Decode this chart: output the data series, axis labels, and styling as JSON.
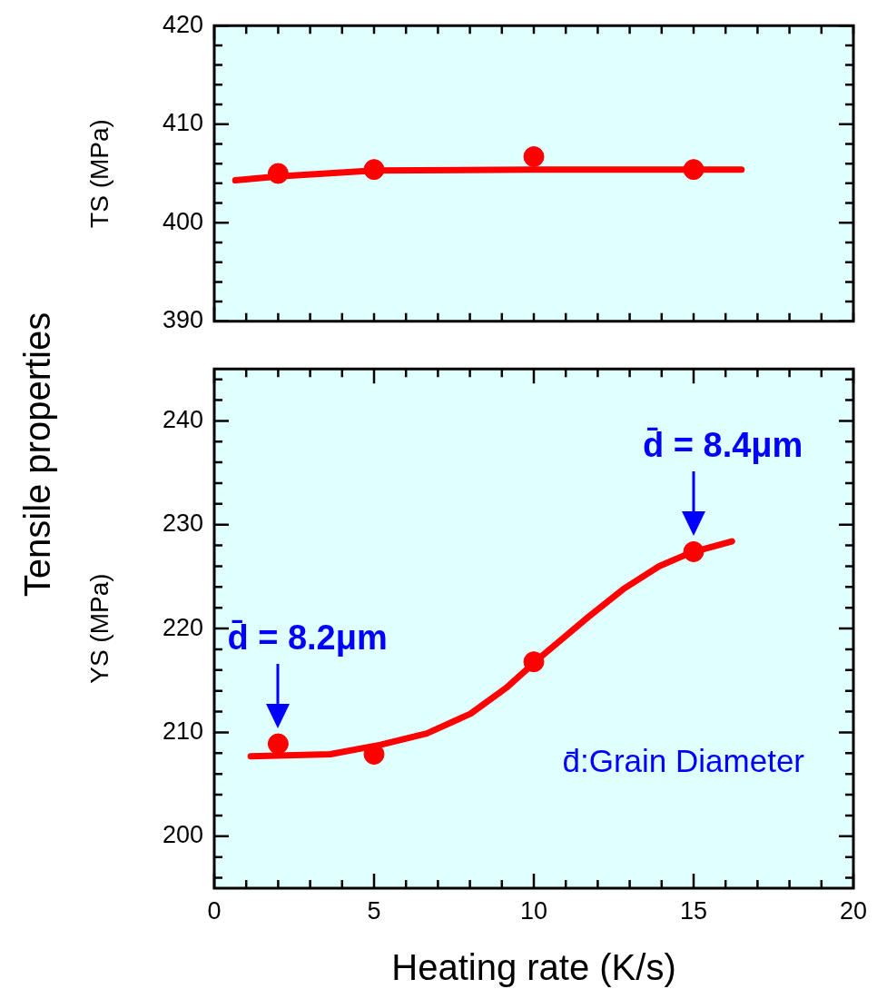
{
  "chart_data": [
    {
      "type": "scatter",
      "ylabel": "TS (MPa)",
      "annotations": [
        "Tensile properties"
      ],
      "tick_labels": "y",
      "grid": false,
      "legend": false,
      "xlim": [
        0,
        20
      ],
      "xticks": [
        0,
        {
          "value": 1,
          "label": null
        },
        {
          "value": 2,
          "label": null
        },
        {
          "value": 3,
          "label": null
        },
        {
          "value": 4,
          "label": null
        },
        {
          "value": 5,
          "label": null
        },
        {
          "value": 6,
          "label": null
        },
        {
          "value": 7,
          "label": null
        },
        {
          "value": 8,
          "label": null
        },
        {
          "value": 9,
          "label": null
        },
        {
          "value": 10,
          "label": null
        },
        {
          "value": 11,
          "label": null
        },
        {
          "value": 12,
          "label": null
        },
        {
          "value": 13,
          "label": null
        },
        {
          "value": 14,
          "label": null
        },
        {
          "value": 15,
          "label": null
        },
        {
          "value": 16,
          "label": null
        },
        {
          "value": 17,
          "label": null
        },
        {
          "value": 18,
          "label": null
        },
        {
          "value": 19,
          "label": null
        },
        {
          "value": 20,
          "label": null
        }
      ],
      "ylim": [
        390,
        420
      ],
      "yticks": [
        390,
        {
          "value": 392,
          "label": null
        },
        {
          "value": 394,
          "label": null
        },
        {
          "value": 396,
          "label": null
        },
        {
          "value": 398,
          "label": null
        },
        400,
        {
          "value": 402,
          "label": null
        },
        {
          "value": 404,
          "label": null
        },
        {
          "value": 406,
          "label": null
        },
        {
          "value": 408,
          "label": null
        },
        410,
        {
          "value": 412,
          "label": null
        },
        {
          "value": 414,
          "label": null
        },
        {
          "value": 416,
          "label": null
        },
        {
          "value": 418,
          "label": null
        },
        420
      ],
      "series": [
        {
          "type": "scatter",
          "color": "#ff0000",
          "marker": "circle",
          "x": [
            2,
            5,
            10,
            15
          ],
          "values": [
            405.0,
            405.4,
            406.7,
            405.4
          ]
        },
        {
          "type": "line",
          "color": "#ff0000",
          "marker": "none",
          "line_style": "solid",
          "x": [
            0.66,
            2,
            5,
            10,
            16.5
          ],
          "values": [
            404.3,
            404.7,
            405.3,
            405.4,
            405.4
          ]
        }
      ]
    },
    {
      "type": "scatter",
      "ylabel": "YS (MPa)",
      "xlabel": "Heating rate (K/s)",
      "grid": false,
      "legend": false,
      "annotations": [
        {
          "text": "d̄ = 8.2μm",
          "x": 2,
          "y": 208.9
        },
        {
          "text": "d̄ = 8.4μm",
          "x": 15,
          "y": 227.4
        },
        "d̄:Grain Diameter"
      ],
      "xlim": [
        0,
        20
      ],
      "xticks": [
        0,
        {
          "value": 1,
          "label": null
        },
        {
          "value": 2,
          "label": null
        },
        {
          "value": 3,
          "label": null
        },
        {
          "value": 4,
          "label": null
        },
        5,
        {
          "value": 6,
          "label": null
        },
        {
          "value": 7,
          "label": null
        },
        {
          "value": 8,
          "label": null
        },
        {
          "value": 9,
          "label": null
        },
        10,
        {
          "value": 11,
          "label": null
        },
        {
          "value": 12,
          "label": null
        },
        {
          "value": 13,
          "label": null
        },
        {
          "value": 14,
          "label": null
        },
        15,
        {
          "value": 16,
          "label": null
        },
        {
          "value": 17,
          "label": null
        },
        {
          "value": 18,
          "label": null
        },
        {
          "value": 19,
          "label": null
        },
        20
      ],
      "ylim": [
        195,
        245
      ],
      "yticks": [
        {
          "value": 196,
          "label": null
        },
        {
          "value": 198,
          "label": null
        },
        200,
        {
          "value": 202,
          "label": null
        },
        {
          "value": 204,
          "label": null
        },
        {
          "value": 206,
          "label": null
        },
        {
          "value": 208,
          "label": null
        },
        210,
        {
          "value": 212,
          "label": null
        },
        {
          "value": 214,
          "label": null
        },
        {
          "value": 216,
          "label": null
        },
        {
          "value": 218,
          "label": null
        },
        220,
        {
          "value": 222,
          "label": null
        },
        {
          "value": 224,
          "label": null
        },
        {
          "value": 226,
          "label": null
        },
        {
          "value": 228,
          "label": null
        },
        230,
        {
          "value": 232,
          "label": null
        },
        {
          "value": 234,
          "label": null
        },
        {
          "value": 236,
          "label": null
        },
        {
          "value": 238,
          "label": null
        },
        240,
        {
          "value": 242,
          "label": null
        },
        {
          "value": 244,
          "label": null
        }
      ],
      "series": [
        {
          "type": "scatter",
          "color": "#ff0000",
          "marker": "circle",
          "x": [
            2,
            5,
            10,
            15
          ],
          "values": [
            208.9,
            207.9,
            216.8,
            227.4
          ]
        },
        {
          "type": "line",
          "color": "#ff0000",
          "marker": "none",
          "line_style": "solid",
          "x": [
            1.14,
            3.63,
            5.2,
            6.65,
            8.02,
            9.14,
            10.19,
            11.7,
            12.8,
            13.92,
            14.9,
            16.2
          ],
          "values": [
            207.7,
            207.9,
            208.8,
            209.9,
            211.8,
            214.3,
            217.2,
            221.1,
            223.8,
            226.0,
            227.3,
            228.4
          ]
        }
      ]
    }
  ]
}
